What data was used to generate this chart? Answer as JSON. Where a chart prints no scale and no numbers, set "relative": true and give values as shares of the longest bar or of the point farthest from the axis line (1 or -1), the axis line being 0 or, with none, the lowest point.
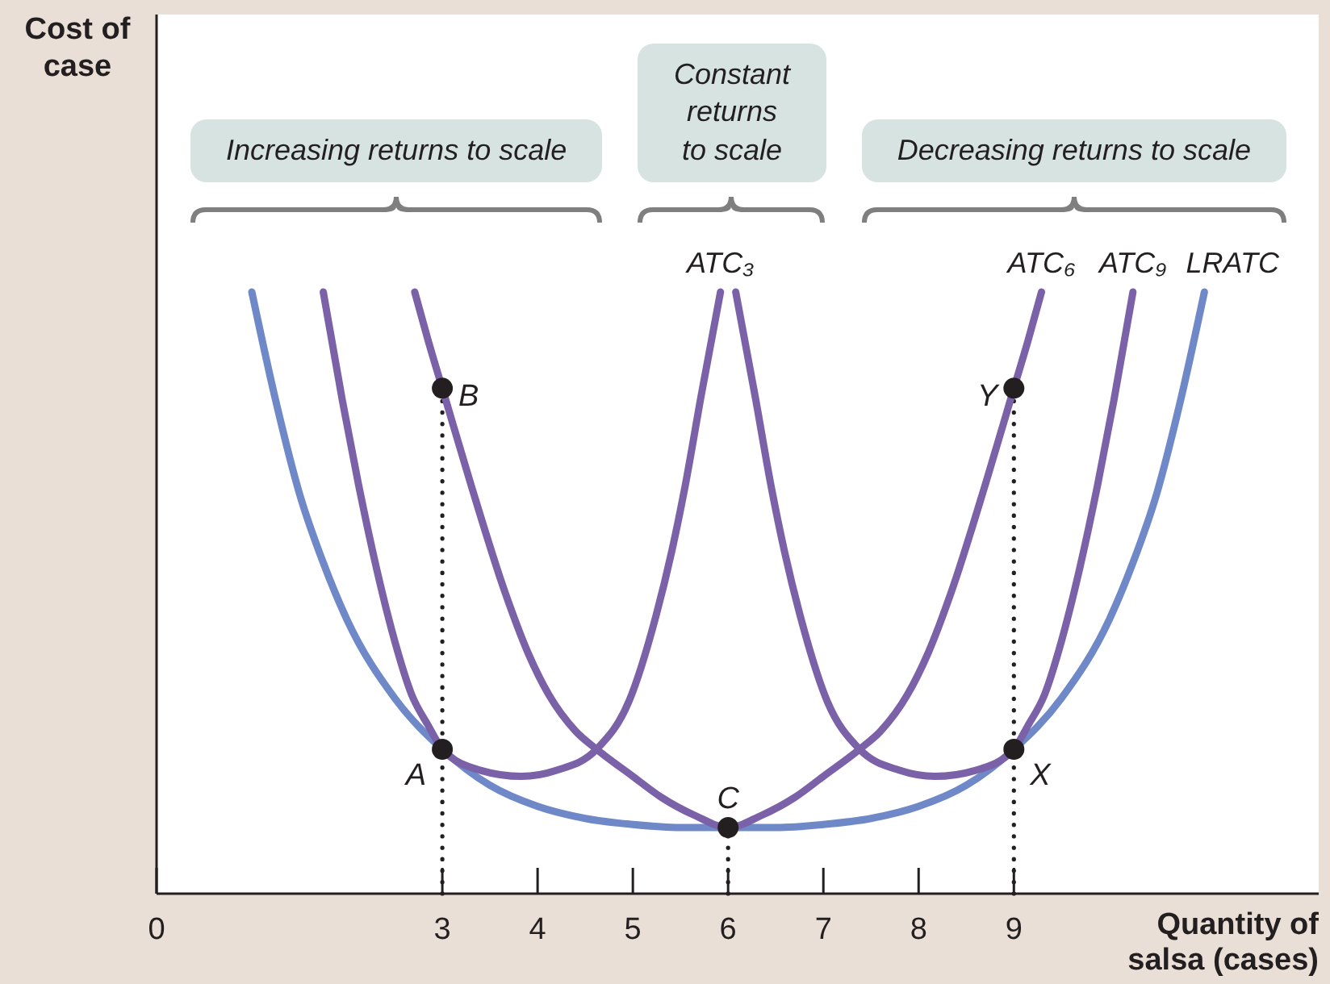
{
  "chart_data": {
    "type": "line",
    "relative": true,
    "xlabel": "Quantity of salsa (cases)",
    "xlim": [
      0,
      12.2
    ],
    "xticks": [
      0,
      3,
      4,
      5,
      6,
      7,
      8,
      9
    ],
    "marker": "none",
    "series": [
      {
        "name": "LRATC",
        "color": "#6e88c8",
        "x": [
          1.0,
          1.25,
          1.5,
          1.75,
          2.0,
          2.5,
          3.0,
          3.5,
          4.0,
          4.5,
          5.0,
          5.5,
          6.0,
          6.5,
          7.0,
          7.5,
          8.0,
          8.5,
          9.0,
          9.5,
          10.0,
          10.25,
          10.5,
          10.75,
          11.0
        ],
        "values": [
          1.0,
          0.82,
          0.665,
          0.55,
          0.455,
          0.325,
          0.24,
          0.18,
          0.145,
          0.125,
          0.115,
          0.11,
          0.11,
          0.11,
          0.115,
          0.125,
          0.145,
          0.18,
          0.24,
          0.325,
          0.455,
          0.55,
          0.665,
          0.82,
          1.0
        ]
      },
      {
        "name": "ATC₃",
        "color": "#7b61a8",
        "x": [
          1.75,
          1.95,
          2.12,
          2.31,
          2.5,
          2.68,
          2.85,
          3.0,
          3.4,
          3.83,
          4.2,
          4.62,
          4.96,
          5.24,
          5.41,
          5.54,
          5.72,
          5.92
        ],
        "values": [
          1.0,
          0.82,
          0.68,
          0.54,
          0.42,
          0.33,
          0.28,
          0.24,
          0.205,
          0.195,
          0.205,
          0.24,
          0.32,
          0.46,
          0.57,
          0.67,
          0.83,
          1.0
        ]
      },
      {
        "name": "ATC₆",
        "color": "#7b61a8",
        "x": [
          2.71,
          2.85,
          3.0,
          3.3,
          3.66,
          3.9,
          4.12,
          4.4,
          4.62,
          5.0,
          5.3,
          5.65,
          6.0,
          6.35,
          6.7,
          7.0,
          7.38,
          7.6,
          7.88,
          8.1,
          8.34,
          8.7,
          9.0,
          9.15,
          9.29
        ],
        "values": [
          1.0,
          0.92,
          0.84,
          0.68,
          0.5,
          0.4,
          0.33,
          0.27,
          0.24,
          0.195,
          0.16,
          0.13,
          0.11,
          0.13,
          0.16,
          0.195,
          0.24,
          0.27,
          0.33,
          0.4,
          0.5,
          0.68,
          0.84,
          0.92,
          1.0
        ]
      },
      {
        "name": "ATC₉",
        "color": "#7b61a8",
        "x": [
          6.08,
          6.28,
          6.46,
          6.59,
          6.76,
          7.04,
          7.38,
          7.8,
          8.17,
          8.6,
          9.0,
          9.15,
          9.32,
          9.5,
          9.69,
          9.88,
          10.05,
          10.25
        ],
        "values": [
          1.0,
          0.83,
          0.67,
          0.57,
          0.46,
          0.32,
          0.24,
          0.205,
          0.195,
          0.205,
          0.24,
          0.28,
          0.33,
          0.42,
          0.54,
          0.68,
          0.82,
          1.0
        ]
      },
      {
        "type": "scatter",
        "color": "#231f20",
        "marker": "circle",
        "x": [
          3,
          3,
          6,
          9,
          9
        ],
        "values": [
          0.24,
          0.84,
          0.11,
          0.24,
          0.84
        ]
      }
    ],
    "ref_lines": [
      {
        "axis": "x",
        "value": 3,
        "line_style": "dotted",
        "color": "#231f20"
      },
      {
        "axis": "x",
        "value": 6,
        "line_style": "dotted",
        "color": "#231f20"
      },
      {
        "axis": "x",
        "value": 9,
        "line_style": "dotted",
        "color": "#231f20"
      }
    ],
    "annotations": [
      "Cost of case",
      "Increasing returns to scale",
      "Constant\nreturns\nto scale",
      "Decreasing returns to scale",
      {
        "text": "A",
        "x": 3,
        "y": 0.24
      },
      {
        "text": "B",
        "x": 3,
        "y": 0.84
      },
      {
        "text": "C",
        "x": 6,
        "y": 0.11
      },
      {
        "text": "X",
        "x": 9,
        "y": 0.24
      },
      {
        "text": "Y",
        "x": 9,
        "y": 0.84
      }
    ]
  }
}
